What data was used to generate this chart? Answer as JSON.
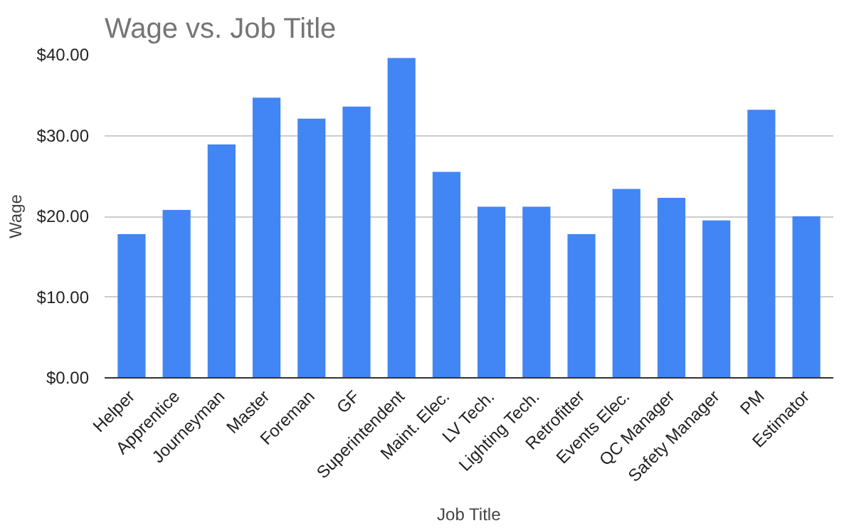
{
  "chart_data": {
    "type": "bar",
    "title": "Wage vs. Job Title",
    "xlabel": "Job Title",
    "ylabel": "Wage",
    "categories": [
      "Helper",
      "Apprentice",
      "Journeyman",
      "Master",
      "Foreman",
      "GF",
      "Superintendent",
      "Maint. Elec.",
      "LV Tech.",
      "Lighting Tech.",
      "Retrofitter",
      "Events Elec.",
      "QC Manager",
      "Safety Manager",
      "PM",
      "Estimator"
    ],
    "values": [
      17.8,
      20.8,
      28.9,
      34.7,
      32.1,
      33.6,
      39.6,
      25.5,
      21.2,
      21.2,
      17.8,
      23.4,
      22.3,
      19.5,
      33.2,
      20.0
    ],
    "color": "#4285f4",
    "ylim": [
      0,
      40
    ],
    "yticks": [
      {
        "value": 0,
        "label": "$0.00"
      },
      {
        "value": 10,
        "label": "$10.00"
      },
      {
        "value": 20,
        "label": "$20.00"
      },
      {
        "value": 30,
        "label": "$30.00"
      },
      {
        "value": 40,
        "label": "$40.00"
      }
    ],
    "grid": "y"
  }
}
